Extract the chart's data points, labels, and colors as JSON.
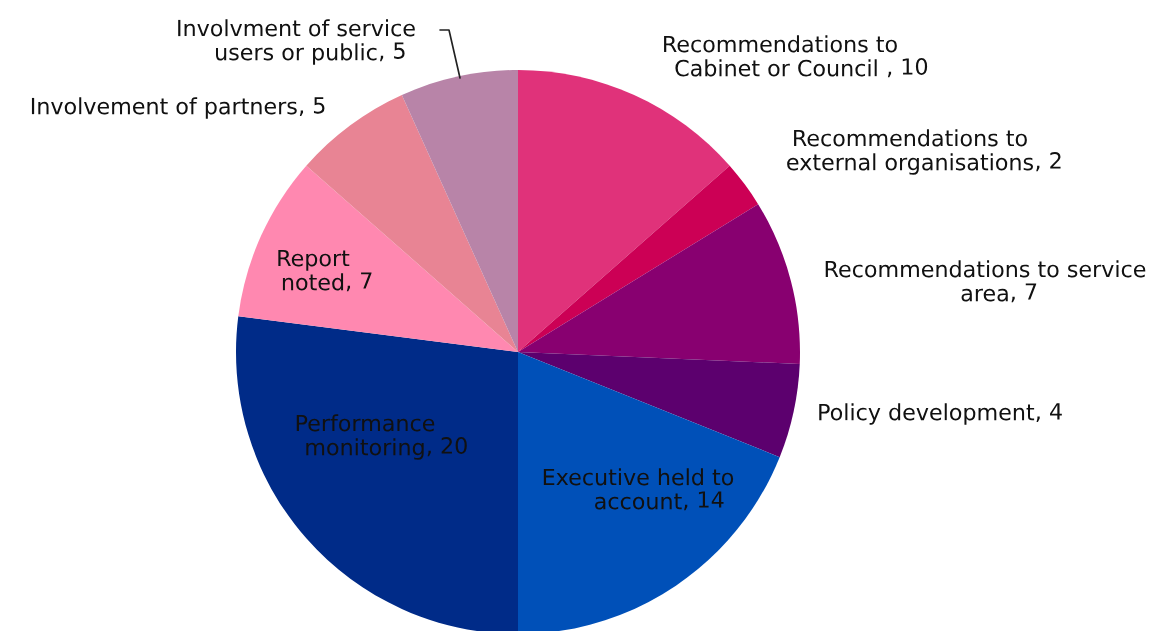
{
  "chart_data": {
    "type": "pie",
    "categories": [
      "Recommendations to\nCabinet or Council ",
      "Recommendations to\nexternal organisations",
      "Recommendations to service\narea",
      "Policy development",
      "Executive held to\naccount",
      "Performance\nmonitoring",
      "Report\nnoted",
      "Involvement of partners",
      "Involvment of service\nusers or public"
    ],
    "values": [
      10,
      2,
      7,
      4,
      14,
      20,
      7,
      5,
      5
    ],
    "colors": [
      "#e0327a",
      "#cc0055",
      "#880070",
      "#5c006e",
      "#0050b8",
      "#002b88",
      "#ff88b0",
      "#e88494",
      "#b884a8"
    ],
    "value_labels": [
      ", 10",
      ", 2",
      ", 7",
      ", 4",
      ", 14",
      ", 20",
      ", 7",
      ", 5",
      ", 5"
    ],
    "legend": false
  }
}
